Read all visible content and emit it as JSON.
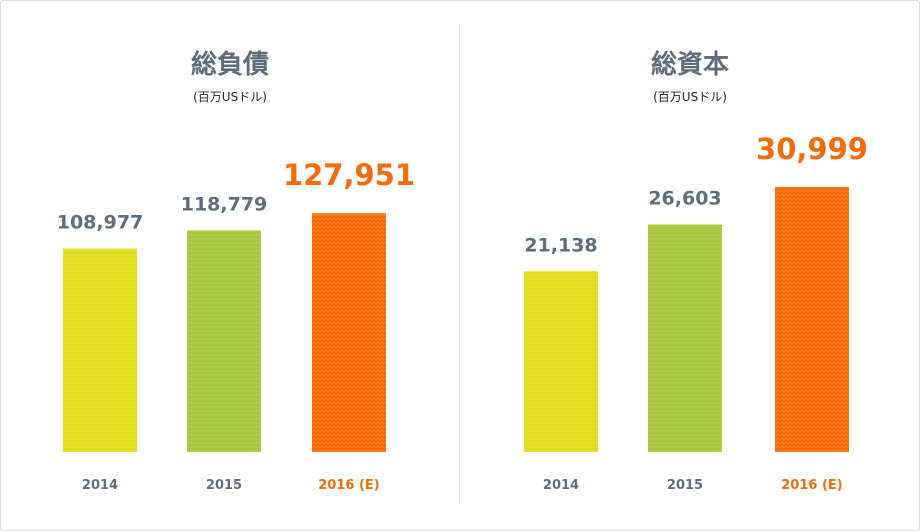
{
  "colors": {
    "bar_2014": "#e0dc17",
    "bar_2015": "#a6c63b",
    "bar_2016": "#ff6a00",
    "text_gray": "#5d6d7b",
    "text_highlight": "#f26b0f"
  },
  "chart_data": [
    {
      "type": "bar",
      "title": "総負債",
      "subtitle": "(百万USドル)",
      "categories": [
        "2014",
        "2015",
        "2016 (E)"
      ],
      "values": [
        108977,
        118779,
        127951
      ],
      "value_labels": [
        "108,977",
        "118,779",
        "127,951"
      ],
      "highlight_index": 2,
      "ylim": [
        0,
        142000
      ],
      "grid": false
    },
    {
      "type": "bar",
      "title": "総資本",
      "subtitle": "(百万USドル)",
      "categories": [
        "2014",
        "2015",
        "2016 (E)"
      ],
      "values": [
        21138,
        26603,
        30999
      ],
      "value_labels": [
        "21,138",
        "26,603",
        "30,999"
      ],
      "highlight_index": 2,
      "ylim": [
        0,
        31000
      ],
      "grid": false
    }
  ]
}
